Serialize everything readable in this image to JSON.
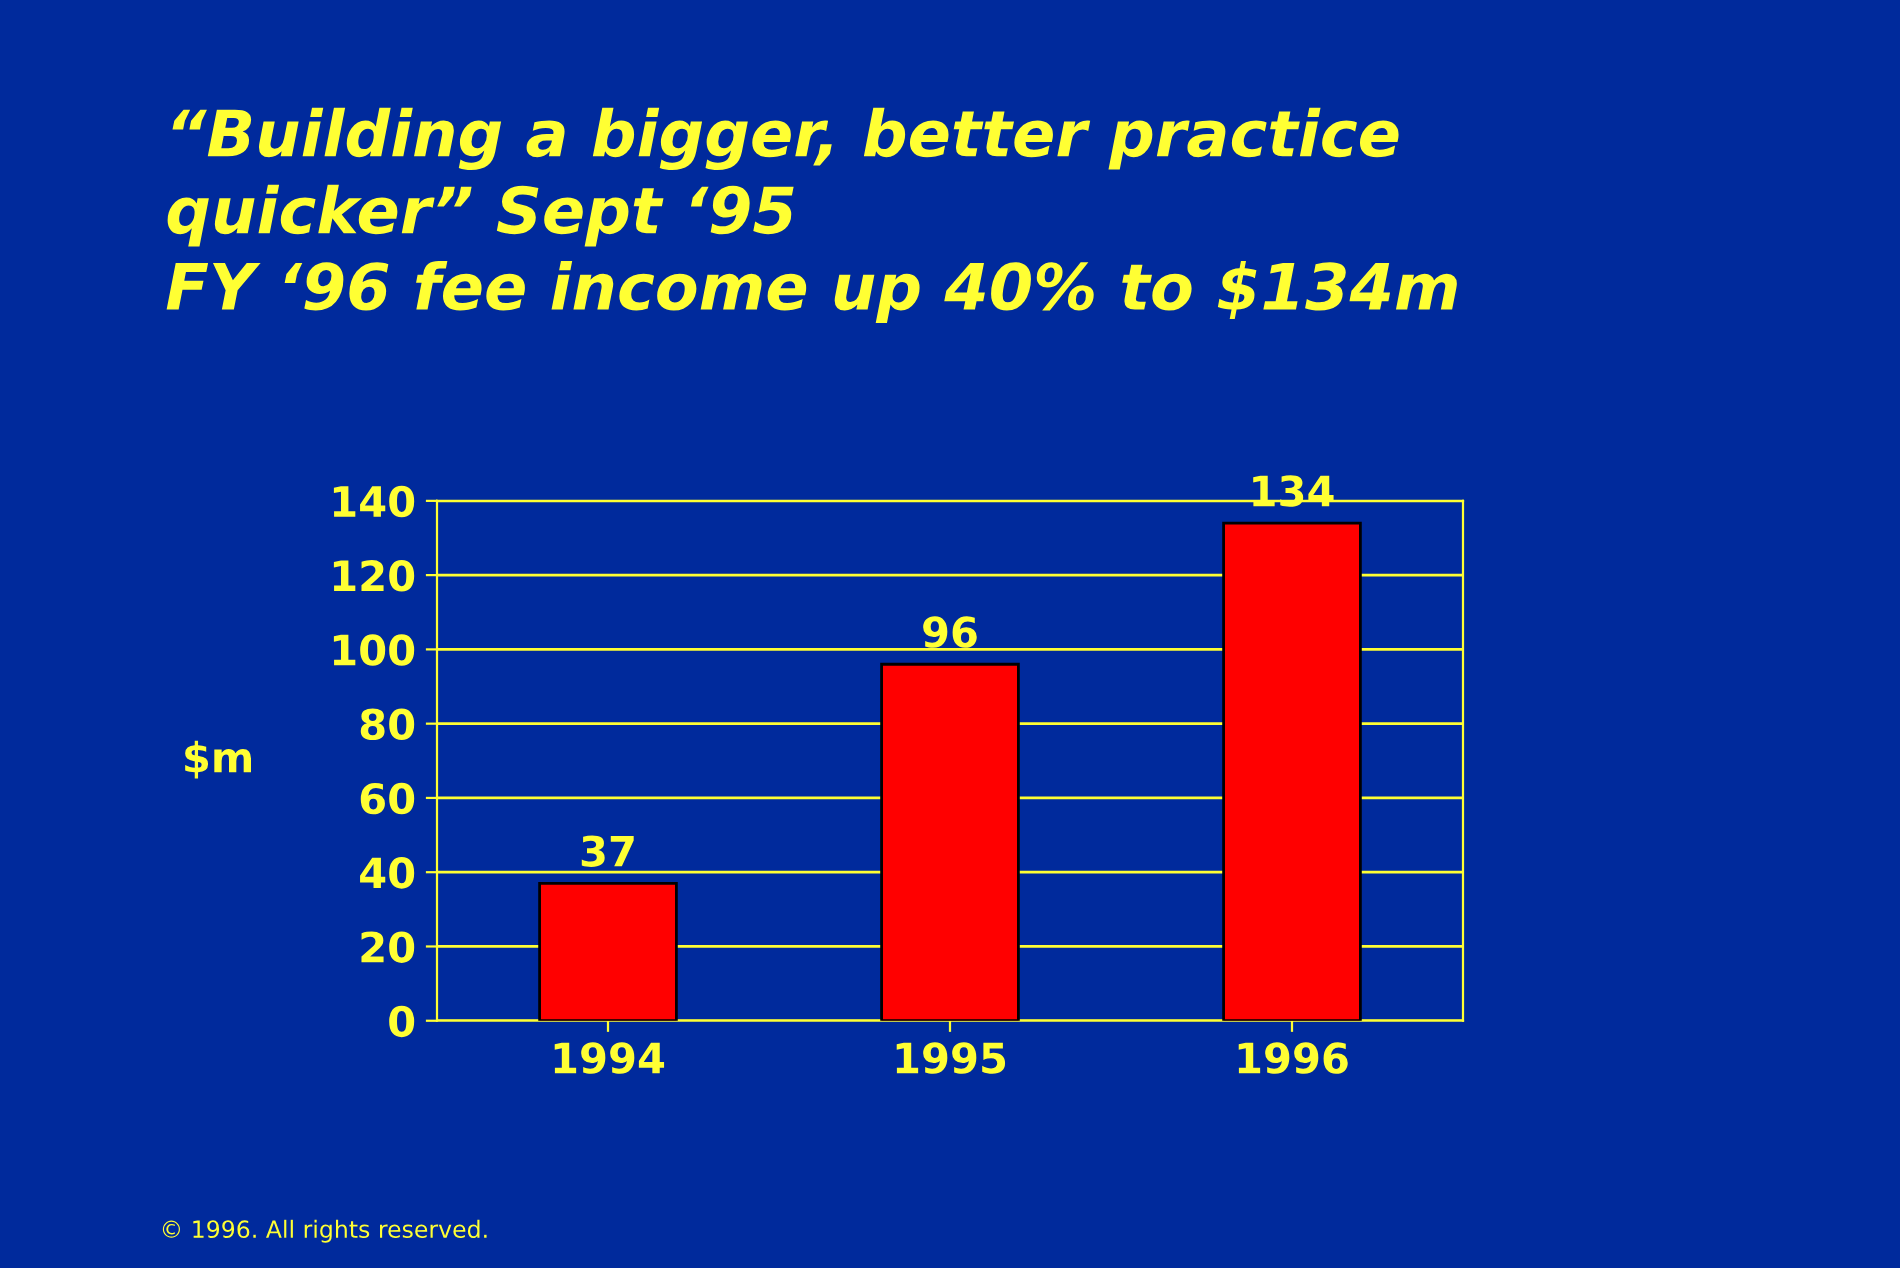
{
  "chart_data": {
    "type": "bar",
    "title": "“Building a bigger, better practice\nquicker” Sept ‘95\nFY ‘96 fee income up 40% to $134m",
    "ylabel": "$m",
    "categories": [
      "1994",
      "1995",
      "1996"
    ],
    "values": [
      37,
      96,
      134
    ],
    "color": "#ff0000",
    "ylim": [
      0,
      140
    ],
    "yticks": [
      0,
      20,
      40,
      60,
      80,
      100,
      120,
      140
    ],
    "grid": "y",
    "data_labels": true,
    "annotations": [
      "© 1996. All rights reserved."
    ]
  }
}
